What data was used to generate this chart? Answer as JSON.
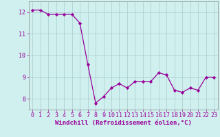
{
  "x": [
    0,
    1,
    2,
    3,
    4,
    5,
    6,
    7,
    8,
    9,
    10,
    11,
    12,
    13,
    14,
    15,
    16,
    17,
    18,
    19,
    20,
    21,
    22,
    23
  ],
  "y": [
    12.1,
    12.1,
    11.9,
    11.9,
    11.9,
    11.9,
    11.5,
    9.6,
    7.8,
    8.1,
    8.5,
    8.7,
    8.5,
    8.8,
    8.8,
    8.8,
    9.2,
    9.1,
    8.4,
    8.3,
    8.5,
    8.4,
    9.0,
    9.0
  ],
  "line_color": "#990099",
  "marker": "D",
  "marker_size": 2.2,
  "bg_color": "#cff0ee",
  "grid_color": "#aacccc",
  "xlabel": "Windchill (Refroidissement éolien,°C)",
  "ylabel": "",
  "xlim": [
    -0.5,
    23.5
  ],
  "ylim": [
    7.5,
    12.5
  ],
  "yticks": [
    8,
    9,
    10,
    11,
    12
  ],
  "xticks": [
    0,
    1,
    2,
    3,
    4,
    5,
    6,
    7,
    8,
    9,
    10,
    11,
    12,
    13,
    14,
    15,
    16,
    17,
    18,
    19,
    20,
    21,
    22,
    23
  ],
  "label_color": "#990099",
  "tick_color": "#990099",
  "xlabel_fontsize": 6.5,
  "tick_fontsize": 6.0,
  "spine_color": "#888888",
  "linewidth": 0.9
}
